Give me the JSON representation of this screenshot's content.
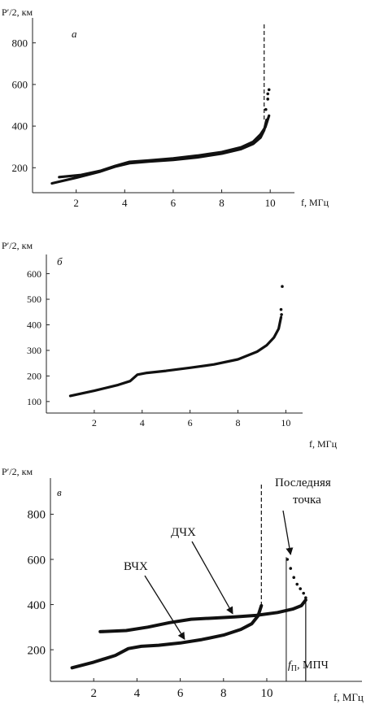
{
  "chart_data": [
    {
      "panel_label": "а",
      "type": "scatter",
      "ylabel": "P′/2, км",
      "xlabel": "f, МГц",
      "xlim": [
        0.2,
        11.0
      ],
      "ylim": [
        80,
        920
      ],
      "xticks": [
        2,
        4,
        6,
        8,
        10
      ],
      "yticks": [
        200,
        400,
        600,
        800
      ],
      "series": [
        {
          "x": [
            1.0,
            2.0,
            3.0,
            3.6,
            4.2,
            5.0,
            6.0,
            7.0,
            8.0,
            8.8,
            9.3,
            9.6,
            9.75,
            9.85
          ],
          "y": [
            125,
            152,
            182,
            205,
            222,
            230,
            238,
            250,
            268,
            290,
            315,
            345,
            380,
            430
          ]
        },
        {
          "x": [
            1.3,
            2.2,
            3.0,
            3.6,
            4.2,
            5.0,
            6.0,
            7.0,
            8.0,
            8.8,
            9.3,
            9.6,
            9.8,
            9.95
          ],
          "y": [
            155,
            165,
            185,
            208,
            228,
            235,
            245,
            258,
            275,
            298,
            325,
            360,
            395,
            450
          ]
        }
      ],
      "scatter_points": {
        "x": [
          9.82,
          9.9,
          9.95,
          9.9
        ],
        "y": [
          480,
          530,
          575,
          555
        ]
      },
      "vertical_dashed_x": 9.75
    },
    {
      "panel_label": "б",
      "type": "scatter",
      "ylabel": "P′/2, км",
      "xlabel": "f, МГц",
      "xlim": [
        0.0,
        10.7
      ],
      "ylim": [
        55,
        675
      ],
      "xticks": [
        2,
        4,
        6,
        8,
        10
      ],
      "yticks": [
        100,
        200,
        300,
        400,
        500,
        600
      ],
      "series": [
        {
          "x": [
            1.0,
            2.0,
            3.0,
            3.5,
            3.8,
            4.2,
            5.0,
            6.0,
            7.0,
            8.0,
            8.8,
            9.2,
            9.5,
            9.7,
            9.8
          ],
          "y": [
            122,
            142,
            165,
            180,
            205,
            212,
            220,
            232,
            245,
            265,
            295,
            320,
            350,
            385,
            430
          ]
        }
      ],
      "scatter_points": {
        "x": [
          9.8,
          9.82,
          9.85
        ],
        "y": [
          460,
          440,
          550
        ]
      }
    },
    {
      "panel_label": "в",
      "type": "line",
      "ylabel": "P′/2, км",
      "xlabel": "f, МГц",
      "xlim": [
        0.0,
        14.4
      ],
      "ylim": [
        60,
        960
      ],
      "xticks": [
        2,
        4,
        6,
        8,
        10
      ],
      "yticks": [
        200,
        400,
        600,
        800
      ],
      "series": [
        {
          "name": "ВЧХ",
          "x": [
            1.0,
            2.0,
            3.0,
            3.6,
            4.2,
            5.0,
            6.0,
            7.0,
            8.0,
            8.8,
            9.3,
            9.6,
            9.75
          ],
          "y": [
            120,
            145,
            175,
            205,
            215,
            220,
            230,
            245,
            265,
            290,
            315,
            350,
            395
          ]
        },
        {
          "name": "ДЧХ",
          "x": [
            2.3,
            3.5,
            4.5,
            5.5,
            6.5,
            7.5,
            8.5,
            9.5,
            10.5,
            11.2,
            11.6,
            11.8
          ],
          "y": [
            280,
            285,
            300,
            320,
            335,
            340,
            345,
            352,
            365,
            380,
            395,
            420
          ]
        }
      ],
      "scatter_points": {
        "x": [
          10.95,
          11.1,
          11.25,
          11.4,
          11.55,
          11.7,
          11.8
        ],
        "y": [
          600,
          560,
          520,
          490,
          470,
          450,
          430
        ]
      },
      "vertical_dashed_x": 9.75,
      "fp_x": 10.9,
      "mpch_x": 11.8,
      "annotations": {
        "dchx": "ДЧХ",
        "vchx": "ВЧХ",
        "last_point_line1": "Последняя",
        "last_point_line2": "точка",
        "fp_label": "f",
        "fp_sub": "П",
        "mpch_label": ", МПЧ"
      }
    }
  ]
}
